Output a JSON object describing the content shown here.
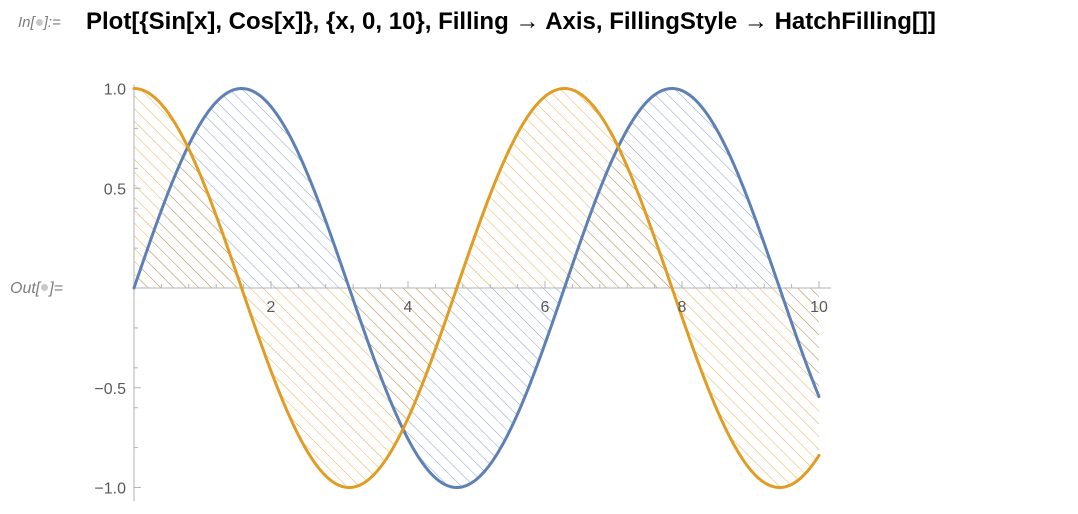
{
  "input": {
    "label_prefix": "In[",
    "label_suffix": "]:=",
    "code": "Plot[{Sin[x], Cos[x]}, {x, 0, 10}, Filling → Axis, FillingStyle → HatchFilling[]]"
  },
  "output": {
    "label_prefix": "Out[",
    "label_suffix": "]="
  },
  "colors": {
    "series_sin": "#5e81b5",
    "series_cos": "#e19c24",
    "axis": "#b3b3b3",
    "tick_text": "#5a5a5a",
    "label_gray": "#7d7d7d"
  },
  "chart_data": {
    "type": "line",
    "title": "",
    "xlabel": "",
    "ylabel": "",
    "xlim": [
      0,
      10
    ],
    "ylim": [
      -1.0,
      1.0
    ],
    "fill": "axis",
    "fill_style": "hatch",
    "grid": false,
    "x_ticks": [
      2,
      4,
      6,
      8,
      10
    ],
    "x_tick_labels": [
      "2",
      "4",
      "6",
      "8",
      "10"
    ],
    "y_ticks": [
      1.0,
      0.5,
      -0.5,
      -1.0
    ],
    "y_tick_labels": [
      "1.0",
      "0.5",
      "−0.5",
      "−1.0"
    ],
    "series": [
      {
        "function": "Sin[x]",
        "color": "#5e81b5",
        "x": [
          0,
          0.5,
          1,
          1.5,
          2,
          2.5,
          3,
          3.5,
          4,
          4.5,
          5,
          5.5,
          6,
          6.5,
          7,
          7.5,
          8,
          8.5,
          9,
          9.5,
          10
        ],
        "y": [
          0,
          0.479,
          0.841,
          0.997,
          0.909,
          0.598,
          0.141,
          -0.351,
          -0.757,
          -0.978,
          -0.959,
          -0.706,
          -0.279,
          0.215,
          0.657,
          0.938,
          0.989,
          0.798,
          0.412,
          -0.075,
          -0.544
        ]
      },
      {
        "function": "Cos[x]",
        "color": "#e19c24",
        "x": [
          0,
          0.5,
          1,
          1.5,
          2,
          2.5,
          3,
          3.5,
          4,
          4.5,
          5,
          5.5,
          6,
          6.5,
          7,
          7.5,
          8,
          8.5,
          9,
          9.5,
          10
        ],
        "y": [
          1.0,
          0.878,
          0.54,
          0.071,
          -0.416,
          -0.801,
          -0.99,
          -0.936,
          -0.654,
          -0.211,
          0.284,
          0.709,
          0.96,
          0.977,
          0.754,
          0.347,
          -0.146,
          -0.602,
          -0.911,
          -0.997,
          -0.839
        ]
      }
    ]
  }
}
